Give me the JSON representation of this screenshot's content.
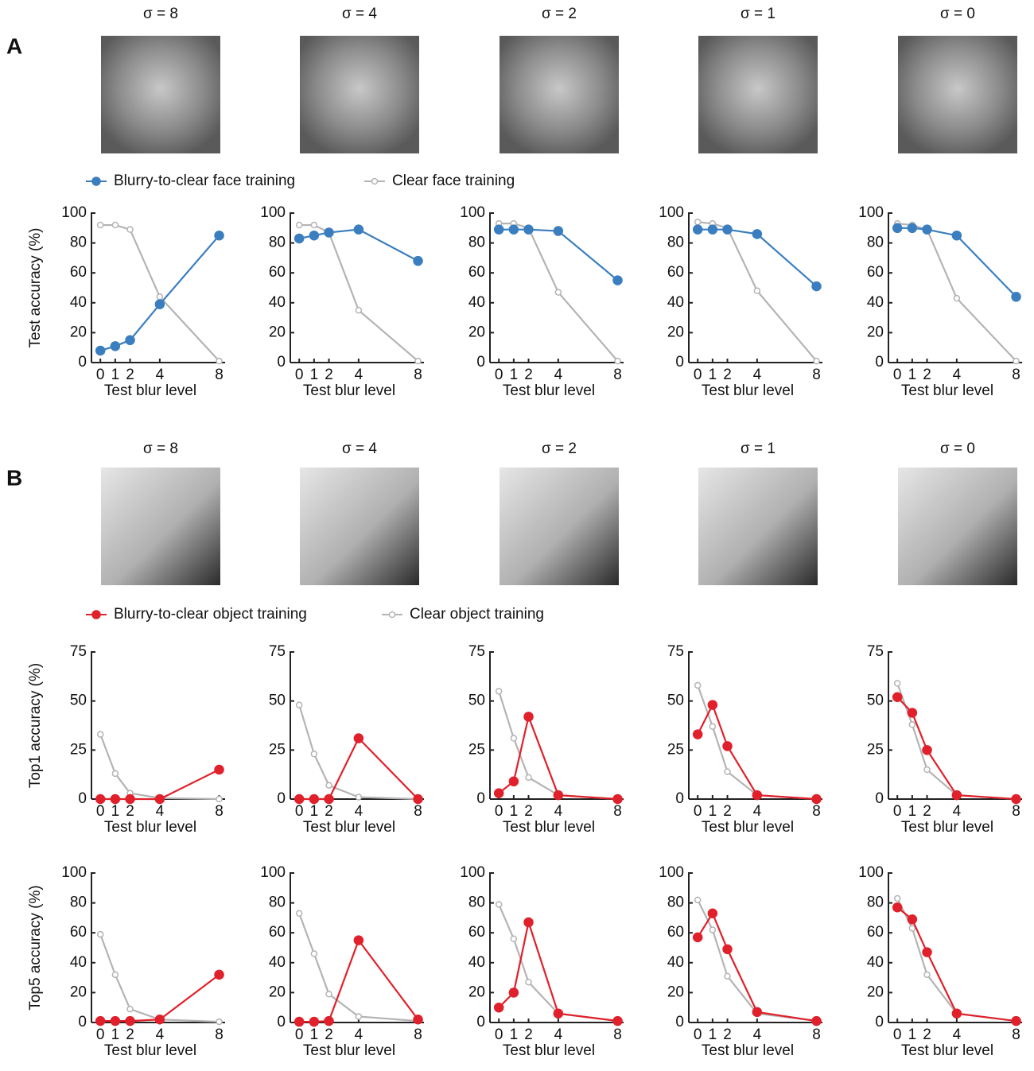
{
  "panels": [
    {
      "label": "A",
      "image_titles": [
        "σ = 8",
        "σ = 4",
        "σ = 2",
        "σ = 1",
        "σ = 0"
      ]
    },
    {
      "label": "B",
      "image_titles": [
        "σ = 8",
        "σ = 4",
        "σ = 2",
        "σ = 1",
        "σ = 0"
      ]
    }
  ],
  "chart_data": [
    {
      "type": "line",
      "ylabel": "Test accuracy (%)",
      "xlabel": "Test blur level",
      "x": [
        0,
        1,
        2,
        4,
        8
      ],
      "xticks": [
        0,
        1,
        2,
        4,
        8
      ],
      "xlim": [
        -0.6,
        8.4
      ],
      "ylim": [
        0,
        100
      ],
      "yticks": [
        0,
        20,
        40,
        60,
        80,
        100
      ],
      "series": [
        {
          "name": "Blurry-to-clear face training",
          "color": "#3a7ebf",
          "values": [
            8,
            11,
            15,
            39,
            85
          ]
        },
        {
          "name": "Clear face training",
          "color": "#b4b4b4",
          "values": [
            92,
            92,
            89,
            44,
            1
          ]
        }
      ]
    },
    {
      "type": "line",
      "xlabel": "Test blur level",
      "x": [
        0,
        1,
        2,
        4,
        8
      ],
      "xticks": [
        0,
        1,
        2,
        4,
        8
      ],
      "xlim": [
        -0.6,
        8.4
      ],
      "ylim": [
        0,
        100
      ],
      "yticks": [
        0,
        20,
        40,
        60,
        80,
        100
      ],
      "series": [
        {
          "color": "#3a7ebf",
          "values": [
            83,
            85,
            87,
            89,
            68
          ]
        },
        {
          "color": "#b4b4b4",
          "values": [
            92,
            92,
            87,
            35,
            1
          ]
        }
      ]
    },
    {
      "type": "line",
      "xlabel": "Test blur level",
      "x": [
        0,
        1,
        2,
        4,
        8
      ],
      "xticks": [
        0,
        1,
        2,
        4,
        8
      ],
      "xlim": [
        -0.6,
        8.4
      ],
      "ylim": [
        0,
        100
      ],
      "yticks": [
        0,
        20,
        40,
        60,
        80,
        100
      ],
      "series": [
        {
          "color": "#3a7ebf",
          "values": [
            89,
            89,
            89,
            88,
            55
          ]
        },
        {
          "color": "#b4b4b4",
          "values": [
            93,
            93,
            90,
            47,
            1
          ]
        }
      ]
    },
    {
      "type": "line",
      "xlabel": "Test blur level",
      "x": [
        0,
        1,
        2,
        4,
        8
      ],
      "xticks": [
        0,
        1,
        2,
        4,
        8
      ],
      "xlim": [
        -0.6,
        8.4
      ],
      "ylim": [
        0,
        100
      ],
      "yticks": [
        0,
        20,
        40,
        60,
        80,
        100
      ],
      "series": [
        {
          "color": "#3a7ebf",
          "values": [
            89,
            89,
            89,
            86,
            51
          ]
        },
        {
          "color": "#b4b4b4",
          "values": [
            94,
            93,
            90,
            48,
            1
          ]
        }
      ]
    },
    {
      "type": "line",
      "xlabel": "Test blur level",
      "x": [
        0,
        1,
        2,
        4,
        8
      ],
      "xticks": [
        0,
        1,
        2,
        4,
        8
      ],
      "xlim": [
        -0.6,
        8.4
      ],
      "ylim": [
        0,
        100
      ],
      "yticks": [
        0,
        20,
        40,
        60,
        80,
        100
      ],
      "series": [
        {
          "color": "#3a7ebf",
          "values": [
            90,
            90,
            89,
            85,
            44
          ]
        },
        {
          "color": "#b4b4b4",
          "values": [
            93,
            92,
            89,
            43,
            1
          ]
        }
      ]
    },
    {
      "type": "line",
      "ylabel": "Top1 accuracy (%)",
      "xlabel": "Test blur level",
      "x": [
        0,
        1,
        2,
        4,
        8
      ],
      "xticks": [
        0,
        1,
        2,
        4,
        8
      ],
      "xlim": [
        -0.6,
        8.4
      ],
      "ylim": [
        0,
        75
      ],
      "yticks": [
        0,
        25,
        50,
        75
      ],
      "series": [
        {
          "name": "Blurry-to-clear object training",
          "color": "#e0202a",
          "values": [
            0,
            0,
            0,
            0,
            15
          ]
        },
        {
          "name": "Clear object training",
          "color": "#b4b4b4",
          "values": [
            33,
            13,
            3,
            0.5,
            0
          ]
        }
      ]
    },
    {
      "type": "line",
      "xlabel": "Test blur level",
      "x": [
        0,
        1,
        2,
        4,
        8
      ],
      "xticks": [
        0,
        1,
        2,
        4,
        8
      ],
      "xlim": [
        -0.6,
        8.4
      ],
      "ylim": [
        0,
        75
      ],
      "yticks": [
        0,
        25,
        50,
        75
      ],
      "series": [
        {
          "color": "#e0202a",
          "values": [
            0,
            0,
            0,
            31,
            0
          ]
        },
        {
          "color": "#b4b4b4",
          "values": [
            48,
            23,
            7,
            1,
            0
          ]
        }
      ]
    },
    {
      "type": "line",
      "xlabel": "Test blur level",
      "x": [
        0,
        1,
        2,
        4,
        8
      ],
      "xticks": [
        0,
        1,
        2,
        4,
        8
      ],
      "xlim": [
        -0.6,
        8.4
      ],
      "ylim": [
        0,
        75
      ],
      "yticks": [
        0,
        25,
        50,
        75
      ],
      "series": [
        {
          "color": "#e0202a",
          "values": [
            3,
            9,
            42,
            2,
            0
          ]
        },
        {
          "color": "#b4b4b4",
          "values": [
            55,
            31,
            11,
            2,
            0
          ]
        }
      ]
    },
    {
      "type": "line",
      "xlabel": "Test blur level",
      "x": [
        0,
        1,
        2,
        4,
        8
      ],
      "xticks": [
        0,
        1,
        2,
        4,
        8
      ],
      "xlim": [
        -0.6,
        8.4
      ],
      "ylim": [
        0,
        75
      ],
      "yticks": [
        0,
        25,
        50,
        75
      ],
      "series": [
        {
          "color": "#e0202a",
          "values": [
            33,
            48,
            27,
            2,
            0
          ]
        },
        {
          "color": "#b4b4b4",
          "values": [
            58,
            37,
            14,
            2,
            0
          ]
        }
      ]
    },
    {
      "type": "line",
      "xlabel": "Test blur level",
      "x": [
        0,
        1,
        2,
        4,
        8
      ],
      "xticks": [
        0,
        1,
        2,
        4,
        8
      ],
      "xlim": [
        -0.6,
        8.4
      ],
      "ylim": [
        0,
        75
      ],
      "yticks": [
        0,
        25,
        50,
        75
      ],
      "series": [
        {
          "color": "#e0202a",
          "values": [
            52,
            44,
            25,
            2,
            0
          ]
        },
        {
          "color": "#b4b4b4",
          "values": [
            59,
            38,
            15,
            2,
            0
          ]
        }
      ]
    },
    {
      "type": "line",
      "ylabel": "Top5 accuracy (%)",
      "xlabel": "Test blur level",
      "x": [
        0,
        1,
        2,
        4,
        8
      ],
      "xticks": [
        0,
        1,
        2,
        4,
        8
      ],
      "xlim": [
        -0.6,
        8.4
      ],
      "ylim": [
        0,
        100
      ],
      "yticks": [
        0,
        20,
        40,
        60,
        80,
        100
      ],
      "series": [
        {
          "color": "#e0202a",
          "values": [
            1,
            1,
            1,
            2,
            32
          ]
        },
        {
          "color": "#b4b4b4",
          "values": [
            59,
            32,
            9,
            2,
            0.5
          ]
        }
      ]
    },
    {
      "type": "line",
      "xlabel": "Test blur level",
      "x": [
        0,
        1,
        2,
        4,
        8
      ],
      "xticks": [
        0,
        1,
        2,
        4,
        8
      ],
      "xlim": [
        -0.6,
        8.4
      ],
      "ylim": [
        0,
        100
      ],
      "yticks": [
        0,
        20,
        40,
        60,
        80,
        100
      ],
      "series": [
        {
          "color": "#e0202a",
          "values": [
            0.5,
            0.5,
            1,
            55,
            2
          ]
        },
        {
          "color": "#b4b4b4",
          "values": [
            73,
            46,
            19,
            4,
            1
          ]
        }
      ]
    },
    {
      "type": "line",
      "xlabel": "Test blur level",
      "x": [
        0,
        1,
        2,
        4,
        8
      ],
      "xticks": [
        0,
        1,
        2,
        4,
        8
      ],
      "xlim": [
        -0.6,
        8.4
      ],
      "ylim": [
        0,
        100
      ],
      "yticks": [
        0,
        20,
        40,
        60,
        80,
        100
      ],
      "series": [
        {
          "color": "#e0202a",
          "values": [
            10,
            20,
            67,
            6,
            1
          ]
        },
        {
          "color": "#b4b4b4",
          "values": [
            79,
            56,
            27,
            6,
            1
          ]
        }
      ]
    },
    {
      "type": "line",
      "xlabel": "Test blur level",
      "x": [
        0,
        1,
        2,
        4,
        8
      ],
      "xticks": [
        0,
        1,
        2,
        4,
        8
      ],
      "xlim": [
        -0.6,
        8.4
      ],
      "ylim": [
        0,
        100
      ],
      "yticks": [
        0,
        20,
        40,
        60,
        80,
        100
      ],
      "series": [
        {
          "color": "#e0202a",
          "values": [
            57,
            73,
            49,
            7,
            1
          ]
        },
        {
          "color": "#b4b4b4",
          "values": [
            82,
            62,
            31,
            6,
            1
          ]
        }
      ]
    },
    {
      "type": "line",
      "xlabel": "Test blur level",
      "x": [
        0,
        1,
        2,
        4,
        8
      ],
      "xticks": [
        0,
        1,
        2,
        4,
        8
      ],
      "xlim": [
        -0.6,
        8.4
      ],
      "ylim": [
        0,
        100
      ],
      "yticks": [
        0,
        20,
        40,
        60,
        80,
        100
      ],
      "series": [
        {
          "color": "#e0202a",
          "values": [
            77,
            69,
            47,
            6,
            1
          ]
        },
        {
          "color": "#b4b4b4",
          "values": [
            83,
            63,
            32,
            6,
            1
          ]
        }
      ]
    }
  ]
}
